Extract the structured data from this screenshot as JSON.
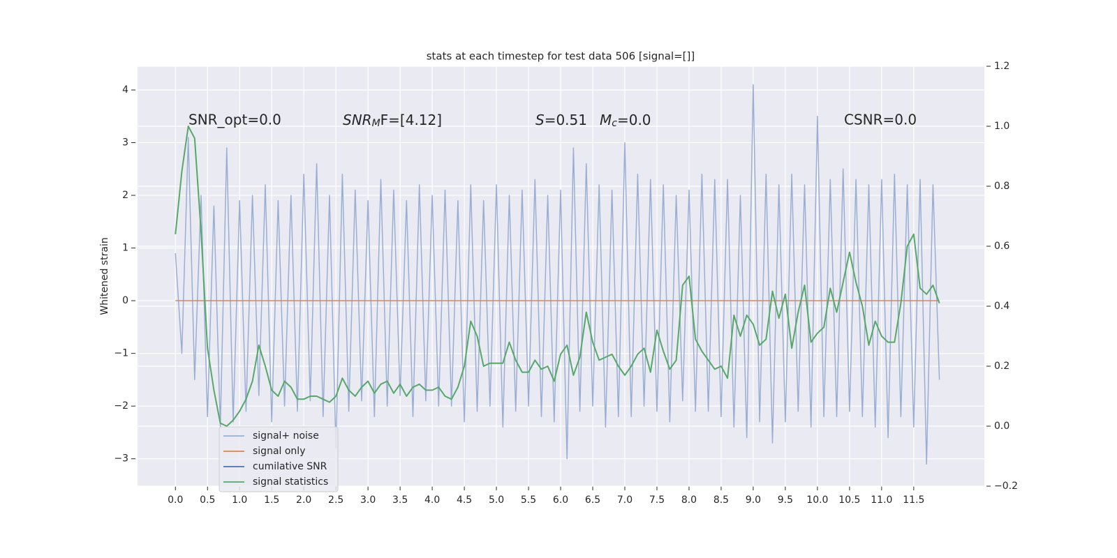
{
  "chart_data": {
    "type": "line",
    "title": "stats at each timestep for test data 506 [signal=[]]",
    "ylabel": "Whitened strain",
    "annotations": [
      {
        "text": "SNR_opt=0.0"
      },
      {
        "parts": [
          "SNR",
          "M",
          "F=[4.12]"
        ]
      },
      {
        "parts": [
          "S",
          "=0.51"
        ]
      },
      {
        "parts": [
          "M",
          "c",
          "=0.0"
        ]
      },
      {
        "text": "CSNR=0.0"
      }
    ],
    "xlim": [
      -0.59,
      12.6
    ],
    "ylim": [
      -3.52,
      4.45
    ],
    "y2lim": [
      -0.2,
      1.2
    ],
    "grid": true,
    "xticks": [
      {
        "value": 0,
        "label": "0.0"
      },
      {
        "value": 0.5,
        "label": "0.5"
      },
      {
        "value": 1,
        "label": "1.0"
      },
      {
        "value": 1.5,
        "label": "1.5"
      },
      {
        "value": 2,
        "label": "2.0"
      },
      {
        "value": 2.5,
        "label": "2.5"
      },
      {
        "value": 3,
        "label": "3.0"
      },
      {
        "value": 3.5,
        "label": "3.5"
      },
      {
        "value": 4,
        "label": "4.0"
      },
      {
        "value": 4.5,
        "label": "4.5"
      },
      {
        "value": 5,
        "label": "5.0"
      },
      {
        "value": 5.5,
        "label": "5.5"
      },
      {
        "value": 6,
        "label": "6.0"
      },
      {
        "value": 6.5,
        "label": "6.5"
      },
      {
        "value": 7,
        "label": "7.0"
      },
      {
        "value": 7.5,
        "label": "7.5"
      },
      {
        "value": 8,
        "label": "8.0"
      },
      {
        "value": 8.5,
        "label": "8.5"
      },
      {
        "value": 9,
        "label": "9.0"
      },
      {
        "value": 9.5,
        "label": "9.5"
      },
      {
        "value": 10,
        "label": "10.0"
      },
      {
        "value": 10.5,
        "label": "10.5"
      },
      {
        "value": 11,
        "label": "11.0"
      },
      {
        "value": 11.5,
        "label": "11.5"
      }
    ],
    "yticks": [
      {
        "value": -3,
        "label": "−3"
      },
      {
        "value": -2,
        "label": "−2"
      },
      {
        "value": -1,
        "label": "−1"
      },
      0,
      1,
      2,
      3,
      4
    ],
    "y2ticks": [
      {
        "value": -0.2,
        "label": "−0.2"
      },
      {
        "value": 0,
        "label": "0.0"
      },
      {
        "value": 0.2,
        "label": "0.2"
      },
      {
        "value": 0.4,
        "label": "0.4"
      },
      {
        "value": 0.6,
        "label": "0.6"
      },
      {
        "value": 0.8,
        "label": "0.8"
      },
      {
        "value": 1,
        "label": "1.0"
      },
      {
        "value": 1.2,
        "label": "1.2"
      }
    ],
    "x": [
      0,
      0.1,
      0.2,
      0.3,
      0.4,
      0.5,
      0.6,
      0.7,
      0.8,
      0.9,
      1,
      1.1,
      1.2,
      1.3,
      1.4,
      1.5,
      1.6,
      1.7,
      1.8,
      1.9,
      2,
      2.1,
      2.2,
      2.3,
      2.4,
      2.5,
      2.6,
      2.7,
      2.8,
      2.9,
      3,
      3.1,
      3.2,
      3.3,
      3.4,
      3.5,
      3.6,
      3.7,
      3.8,
      3.9,
      4,
      4.1,
      4.2,
      4.3,
      4.4,
      4.5,
      4.6,
      4.7,
      4.8,
      4.9,
      5,
      5.1,
      5.2,
      5.3,
      5.4,
      5.5,
      5.6,
      5.7,
      5.8,
      5.9,
      6,
      6.1,
      6.2,
      6.3,
      6.4,
      6.5,
      6.6,
      6.7,
      6.8,
      6.9,
      7,
      7.1,
      7.2,
      7.3,
      7.4,
      7.5,
      7.6,
      7.7,
      7.8,
      7.9,
      8,
      8.1,
      8.2,
      8.3,
      8.4,
      8.5,
      8.6,
      8.7,
      8.8,
      8.9,
      9,
      9.1,
      9.2,
      9.3,
      9.4,
      9.5,
      9.6,
      9.7,
      9.8,
      9.9,
      10,
      10.1,
      10.2,
      10.3,
      10.4,
      10.5,
      10.6,
      10.7,
      10.8,
      10.9,
      11,
      11.1,
      11.2,
      11.3,
      11.4,
      11.5,
      11.6,
      11.7,
      11.8,
      11.9
    ],
    "series": [
      {
        "name": "signal+ noise",
        "color": "#9aaed3",
        "values": [
          0.9,
          -1.0,
          3.1,
          -1.5,
          2.0,
          -2.2,
          1.8,
          -2.4,
          2.9,
          -2.3,
          1.9,
          -2.1,
          2.0,
          -1.8,
          2.2,
          -2.3,
          1.9,
          -2.0,
          2.0,
          -2.1,
          2.4,
          -1.9,
          2.6,
          -2.2,
          2.0,
          -2.8,
          2.4,
          -2.1,
          2.1,
          -1.9,
          1.9,
          -2.2,
          2.3,
          -2.0,
          2.1,
          -1.8,
          1.9,
          -2.2,
          2.2,
          -1.9,
          2.0,
          -2.0,
          2.1,
          -2.0,
          1.9,
          -2.3,
          2.2,
          -2.1,
          1.9,
          -2.0,
          2.2,
          -2.4,
          2.0,
          -2.1,
          2.1,
          -2.0,
          2.3,
          -2.2,
          2.0,
          -2.3,
          2.1,
          -3.0,
          2.9,
          -2.1,
          2.6,
          -2.0,
          2.2,
          -2.4,
          2.1,
          -2.2,
          3.0,
          -2.2,
          2.4,
          -2.0,
          2.3,
          -2.1,
          2.2,
          -2.3,
          2.0,
          -1.9,
          2.1,
          -2.1,
          2.4,
          -2.1,
          2.3,
          -2.2,
          2.3,
          -2.4,
          2.0,
          -2.6,
          4.1,
          -2.3,
          2.4,
          -2.7,
          2.2,
          -2.3,
          2.4,
          -2.1,
          2.2,
          -2.4,
          3.5,
          -2.2,
          2.3,
          -2.2,
          2.5,
          -2.1,
          2.3,
          -2.2,
          2.2,
          -2.4,
          2.3,
          -2.6,
          2.4,
          -2.2,
          2.2,
          -2.4,
          2.3,
          -3.1,
          2.2,
          -1.5
        ]
      },
      {
        "name": "signal only",
        "color": "#dd8452",
        "x": [
          0,
          11.9
        ],
        "values": [
          0,
          0
        ]
      },
      {
        "name": "cumilative SNR",
        "color": "#4c72b0"
      },
      {
        "name": "signal statistics",
        "color": "#55a868",
        "axis": "y2",
        "values": [
          0.64,
          0.85,
          1.0,
          0.96,
          0.65,
          0.26,
          0.12,
          0.01,
          0.0,
          0.02,
          0.05,
          0.09,
          0.15,
          0.27,
          0.2,
          0.12,
          0.1,
          0.15,
          0.13,
          0.09,
          0.09,
          0.1,
          0.1,
          0.09,
          0.08,
          0.1,
          0.16,
          0.12,
          0.1,
          0.13,
          0.15,
          0.11,
          0.14,
          0.15,
          0.11,
          0.14,
          0.1,
          0.13,
          0.14,
          0.12,
          0.12,
          0.13,
          0.1,
          0.09,
          0.13,
          0.2,
          0.35,
          0.3,
          0.2,
          0.21,
          0.21,
          0.21,
          0.28,
          0.22,
          0.18,
          0.18,
          0.22,
          0.19,
          0.2,
          0.15,
          0.24,
          0.27,
          0.17,
          0.23,
          0.38,
          0.28,
          0.22,
          0.23,
          0.24,
          0.2,
          0.17,
          0.2,
          0.24,
          0.26,
          0.18,
          0.32,
          0.25,
          0.19,
          0.22,
          0.47,
          0.5,
          0.29,
          0.25,
          0.22,
          0.19,
          0.2,
          0.16,
          0.37,
          0.3,
          0.37,
          0.34,
          0.27,
          0.29,
          0.45,
          0.36,
          0.44,
          0.26,
          0.38,
          0.47,
          0.28,
          0.31,
          0.33,
          0.46,
          0.38,
          0.48,
          0.58,
          0.48,
          0.4,
          0.27,
          0.35,
          0.3,
          0.28,
          0.28,
          0.41,
          0.6,
          0.64,
          0.46,
          0.44,
          0.47,
          0.41
        ]
      }
    ]
  }
}
